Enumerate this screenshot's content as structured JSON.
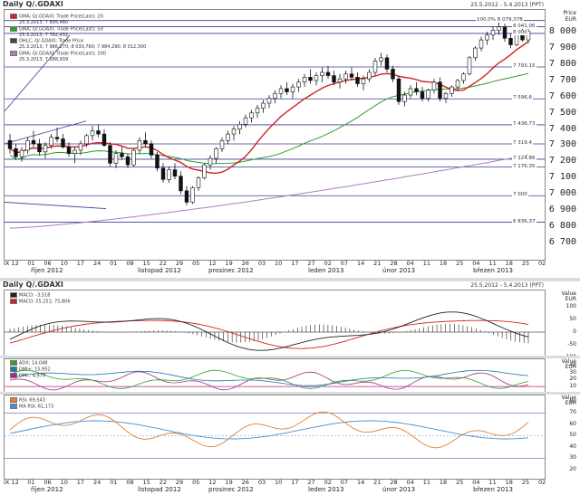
{
  "header": {
    "title": "Daily Q/.GDAXI",
    "date_range": "25.5.2012 - 5.4.2013 (PPT)"
  },
  "price_panel": {
    "axis_title": "Price",
    "axis_unit": "EUR",
    "legend": [
      {
        "text": "GMA; Q/.GDAXI; Trade Price(Last); 20",
        "color": "#d32020"
      },
      {
        "text": "25.3.2013; 7 895,480",
        "color": "#d32020"
      },
      {
        "text": "GMA; Q/.GDAXI; Trade Price(Last); 50",
        "color": "#2ca02c"
      },
      {
        "text": "25.3.2013; 7 782,432",
        "color": "#2ca02c"
      },
      {
        "text": "OHLC; Q/.GDAXI; Trade Price",
        "color": "#444444"
      },
      {
        "text": "25.3.2013; 7 986,270; 8 030,760; 7 984,290; 8 012,300",
        "color": "#444444"
      },
      {
        "text": "GMA; Q/.GDAXI; Trade Price(Last); 200",
        "color": "#b07cc0"
      },
      {
        "text": "25.3.2013; 7 288,939",
        "color": "#b07cc0"
      }
    ],
    "levels": [
      {
        "label": "100,0% 8 079,378",
        "value": 8079.378
      },
      {
        "label": "8 041,06",
        "value": 8041.06
      },
      {
        "label": "8 000",
        "value": 8000
      },
      {
        "label": "7 793,15",
        "value": 7793.15
      },
      {
        "label": "7 596,6",
        "value": 7596.6
      },
      {
        "label": "7 436,73",
        "value": 7436.73
      },
      {
        "label": "7 319,4",
        "value": 7319.4
      },
      {
        "label": "7 224,86",
        "value": 7224.86
      },
      {
        "label": "7 176,35",
        "value": 7176.35
      },
      {
        "label": "7 000",
        "value": 7000
      },
      {
        "label": "6 836,37",
        "value": 6836.37
      }
    ],
    "y_ticks": [
      "8 000",
      "7 900",
      "7 800",
      "7 700",
      "7 600",
      "7 500",
      "7 400",
      "7 300",
      "7 200",
      "7 100",
      "7 000",
      "6 900",
      "6 800",
      "6 700"
    ],
    "x_ticks": [
      "IX 12",
      "01",
      "06",
      "10",
      "17",
      "24",
      "01",
      "08",
      "15",
      "22",
      "29",
      "05",
      "12",
      "19",
      "26",
      "03",
      "10",
      "17",
      "27",
      "02",
      "07",
      "14",
      "21",
      "28",
      "04",
      "11",
      "18",
      "25",
      "04",
      "11",
      "18",
      "25",
      "02"
    ],
    "months": [
      "říjen 2012",
      "listopad 2012",
      "prosinec 2012",
      "leden 2013",
      "únor 2013",
      "březen 2013"
    ]
  },
  "sub_header": {
    "title": "Daily Q/.GDAXI",
    "date_range": "25.5.2012 - 5.4.2013 (PPT)"
  },
  "macd_panel": {
    "legend": [
      {
        "text": "MACD; -3,518",
        "color": "#222222"
      },
      {
        "text": "MACD; 55,251; 75,806",
        "color": "#d32020"
      }
    ],
    "axis_title": "Value",
    "axis_unit": "EUR",
    "ticks": [
      "100",
      "50",
      "0",
      "-50",
      "-100"
    ]
  },
  "dmi_panel": {
    "legend": [
      {
        "text": "ADX; 14,048",
        "color": "#2ca02c"
      },
      {
        "text": "DMI+; 15,952",
        "color": "#1f77b4"
      },
      {
        "text": "DMI-; 4,979",
        "color": "#a0307a"
      }
    ],
    "axis_title": "Value",
    "axis_unit": "EUR",
    "ticks": [
      "40",
      "30",
      "20",
      "10"
    ]
  },
  "rsi_panel": {
    "legend": [
      {
        "text": "RSI; 69,543",
        "color": "#e08030"
      },
      {
        "text": "MA RSI; 61,173",
        "color": "#4a90d0"
      }
    ],
    "axis_title": "Value",
    "axis_unit": "EUR",
    "ticks": [
      "80",
      "70",
      "60",
      "50",
      "40",
      "30",
      "20"
    ]
  },
  "chart_data": {
    "type": "candlestick",
    "title": "Daily Q/.GDAXI",
    "ylabel": "Price EUR",
    "ylim": [
      6650,
      8100
    ],
    "ohlc": [
      [
        7340,
        7380,
        7260,
        7290
      ],
      [
        7290,
        7320,
        7220,
        7240
      ],
      [
        7240,
        7300,
        7210,
        7280
      ],
      [
        7280,
        7360,
        7260,
        7340
      ],
      [
        7340,
        7400,
        7300,
        7320
      ],
      [
        7320,
        7350,
        7250,
        7270
      ],
      [
        7270,
        7330,
        7230,
        7310
      ],
      [
        7310,
        7380,
        7290,
        7360
      ],
      [
        7360,
        7420,
        7330,
        7350
      ],
      [
        7350,
        7380,
        7290,
        7300
      ],
      [
        7300,
        7330,
        7240,
        7260
      ],
      [
        7260,
        7300,
        7200,
        7280
      ],
      [
        7280,
        7340,
        7250,
        7320
      ],
      [
        7320,
        7380,
        7300,
        7370
      ],
      [
        7370,
        7430,
        7340,
        7400
      ],
      [
        7400,
        7440,
        7360,
        7380
      ],
      [
        7380,
        7410,
        7300,
        7310
      ],
      [
        7310,
        7330,
        7180,
        7200
      ],
      [
        7200,
        7280,
        7170,
        7260
      ],
      [
        7260,
        7300,
        7220,
        7240
      ],
      [
        7240,
        7260,
        7170,
        7190
      ],
      [
        7190,
        7290,
        7180,
        7280
      ],
      [
        7280,
        7360,
        7260,
        7340
      ],
      [
        7340,
        7390,
        7300,
        7320
      ],
      [
        7320,
        7340,
        7230,
        7250
      ],
      [
        7250,
        7270,
        7150,
        7170
      ],
      [
        7170,
        7200,
        7080,
        7100
      ],
      [
        7100,
        7180,
        7080,
        7160
      ],
      [
        7160,
        7200,
        7100,
        7120
      ],
      [
        7120,
        7150,
        7010,
        7030
      ],
      [
        7030,
        7060,
        6940,
        6960
      ],
      [
        6960,
        7060,
        6950,
        7050
      ],
      [
        7050,
        7120,
        7030,
        7110
      ],
      [
        7110,
        7200,
        7100,
        7190
      ],
      [
        7190,
        7250,
        7160,
        7230
      ],
      [
        7230,
        7300,
        7200,
        7290
      ],
      [
        7290,
        7360,
        7270,
        7340
      ],
      [
        7340,
        7400,
        7320,
        7380
      ],
      [
        7380,
        7430,
        7340,
        7410
      ],
      [
        7410,
        7460,
        7380,
        7440
      ],
      [
        7440,
        7500,
        7420,
        7480
      ],
      [
        7480,
        7530,
        7450,
        7510
      ],
      [
        7510,
        7560,
        7480,
        7540
      ],
      [
        7540,
        7590,
        7510,
        7570
      ],
      [
        7570,
        7620,
        7540,
        7600
      ],
      [
        7600,
        7650,
        7570,
        7630
      ],
      [
        7630,
        7680,
        7600,
        7660
      ],
      [
        7660,
        7700,
        7620,
        7640
      ],
      [
        7640,
        7690,
        7600,
        7670
      ],
      [
        7670,
        7720,
        7640,
        7700
      ],
      [
        7700,
        7750,
        7670,
        7730
      ],
      [
        7730,
        7780,
        7690,
        7710
      ],
      [
        7710,
        7760,
        7680,
        7740
      ],
      [
        7740,
        7790,
        7700,
        7760
      ],
      [
        7760,
        7800,
        7720,
        7740
      ],
      [
        7740,
        7770,
        7680,
        7700
      ],
      [
        7700,
        7750,
        7660,
        7720
      ],
      [
        7720,
        7770,
        7690,
        7750
      ],
      [
        7750,
        7790,
        7710,
        7730
      ],
      [
        7730,
        7760,
        7670,
        7690
      ],
      [
        7690,
        7740,
        7650,
        7720
      ],
      [
        7720,
        7780,
        7700,
        7760
      ],
      [
        7760,
        7850,
        7740,
        7830
      ],
      [
        7830,
        7880,
        7800,
        7850
      ],
      [
        7850,
        7870,
        7760,
        7780
      ],
      [
        7780,
        7800,
        7700,
        7720
      ],
      [
        7720,
        7740,
        7560,
        7580
      ],
      [
        7580,
        7640,
        7550,
        7620
      ],
      [
        7620,
        7680,
        7600,
        7660
      ],
      [
        7660,
        7700,
        7620,
        7640
      ],
      [
        7640,
        7670,
        7580,
        7600
      ],
      [
        7600,
        7660,
        7580,
        7650
      ],
      [
        7650,
        7720,
        7630,
        7700
      ],
      [
        7700,
        7730,
        7580,
        7600
      ],
      [
        7600,
        7640,
        7570,
        7630
      ],
      [
        7630,
        7680,
        7610,
        7670
      ],
      [
        7670,
        7720,
        7650,
        7710
      ],
      [
        7710,
        7760,
        7690,
        7750
      ],
      [
        7750,
        7860,
        7740,
        7850
      ],
      [
        7850,
        7920,
        7830,
        7910
      ],
      [
        7910,
        7980,
        7890,
        7960
      ],
      [
        7960,
        8010,
        7930,
        7990
      ],
      [
        7990,
        8040,
        7960,
        8020
      ],
      [
        8020,
        8079,
        7990,
        8040
      ],
      [
        8040,
        8060,
        7950,
        7970
      ],
      [
        7970,
        8000,
        7910,
        7930
      ],
      [
        7930,
        8010,
        7920,
        8000
      ],
      [
        8000,
        8030,
        7950,
        7960
      ],
      [
        7960,
        8040,
        7940,
        8012
      ]
    ],
    "series": [
      {
        "name": "GMA 20",
        "color": "#d32020"
      },
      {
        "name": "GMA 50",
        "color": "#2ca02c"
      },
      {
        "name": "GMA 200",
        "color": "#b07cc0"
      }
    ]
  }
}
